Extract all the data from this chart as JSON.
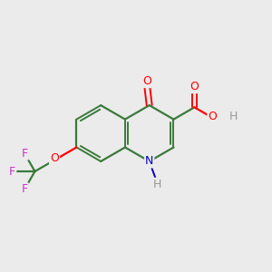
{
  "background_color": "#ebebeb",
  "bond_color": "#3a7a3a",
  "atom_colors": {
    "O": "#ff0000",
    "N": "#0000cc",
    "F": "#cc33cc",
    "H": "#999999",
    "C": "#3a7a3a"
  },
  "figsize": [
    3.0,
    3.0
  ],
  "dpi": 100
}
